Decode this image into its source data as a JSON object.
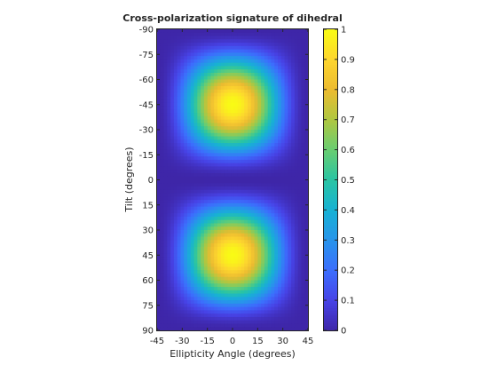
{
  "chart_data": {
    "type": "heatmap",
    "title": "Cross-polarization signature of dihedral",
    "xlabel": "Ellipticity Angle (degrees)",
    "ylabel": "Tilt (degrees)",
    "xlim": [
      -45,
      45
    ],
    "ylim": [
      -90,
      90
    ],
    "y_direction": "reverse",
    "x_ticks": [
      "-45",
      "-30",
      "-15",
      "0",
      "15",
      "30",
      "45"
    ],
    "y_ticks": [
      "-90",
      "-75",
      "-60",
      "-45",
      "-30",
      "-15",
      "0",
      "15",
      "30",
      "45",
      "60",
      "75",
      "90"
    ],
    "colorbar": {
      "clim": [
        0,
        1
      ],
      "ticks": [
        "0",
        "0.1",
        "0.2",
        "0.3",
        "0.4",
        "0.5",
        "0.6",
        "0.7",
        "0.8",
        "0.9",
        "1"
      ],
      "colormap": "parula"
    },
    "function": "cos^2(2*ellipticity) * sin^2(2*tilt)",
    "peaks": [
      {
        "x": 0,
        "y": -45,
        "value": 1
      },
      {
        "x": 0,
        "y": 45,
        "value": 1
      }
    ],
    "minima": [
      {
        "y": -90,
        "value": 0
      },
      {
        "y": 0,
        "value": 0
      },
      {
        "y": 90,
        "value": 0
      },
      {
        "x": -45,
        "value": 0
      },
      {
        "x": 45,
        "value": 0
      }
    ]
  }
}
